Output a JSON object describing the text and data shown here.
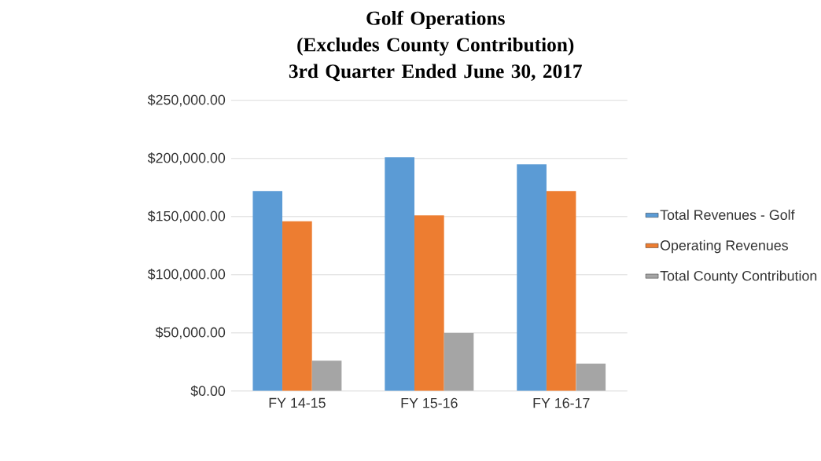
{
  "chart_data": {
    "type": "bar",
    "title": "Golf Operations",
    "subtitle": "(Excludes County Contribution) 3rd Quarter Ended June 30, 2017",
    "categories": [
      "FY 14-15",
      "FY 15-16",
      "FY 16-17"
    ],
    "series": [
      {
        "name": "Total Revenues - Golf",
        "color": "#5b9bd5",
        "values": [
          172000,
          201000,
          195000
        ]
      },
      {
        "name": "Operating Revenues",
        "color": "#ed7d31",
        "values": [
          146000,
          151000,
          172000
        ]
      },
      {
        "name": "Total County Contribution",
        "color": "#a5a5a5",
        "values": [
          26000,
          50000,
          23500
        ]
      }
    ],
    "ylim": [
      0,
      250000
    ],
    "yticks": [
      {
        "value": 0,
        "label": "$0.00"
      },
      {
        "value": 50000,
        "label": "$50,000.00"
      },
      {
        "value": 100000,
        "label": "$100,000.00"
      },
      {
        "value": 150000,
        "label": "$150,000.00"
      },
      {
        "value": 200000,
        "label": "$200,000.00"
      },
      {
        "value": 250000,
        "label": "$250,000.00"
      }
    ],
    "grid": "y",
    "legend": "right"
  }
}
